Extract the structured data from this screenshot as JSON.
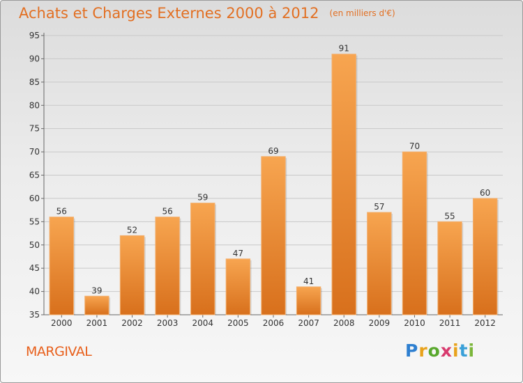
{
  "header": {
    "title": "Achats et Charges Externes 2000 à 2012",
    "subtitle": "(en milliers d'€)"
  },
  "footer": {
    "commune": "MARGIVAL",
    "logo_letters": [
      "P",
      "r",
      "o",
      "x",
      "i",
      "t",
      "i"
    ],
    "logo_colors": [
      "#2e7fd0",
      "#e8a21c",
      "#59a82e",
      "#d83a6e",
      "#e8a21c",
      "#3aa0d8",
      "#7bb63a"
    ]
  },
  "chart_data": {
    "type": "bar",
    "categories": [
      "2000",
      "2001",
      "2002",
      "2003",
      "2004",
      "2005",
      "2006",
      "2007",
      "2008",
      "2009",
      "2010",
      "2011",
      "2012"
    ],
    "values": [
      56,
      39,
      52,
      56,
      59,
      47,
      69,
      41,
      91,
      57,
      70,
      55,
      60
    ],
    "data_labels": [
      "56",
      "39",
      "52",
      "56",
      "59",
      "47",
      "69",
      "41",
      "91",
      "57",
      "70",
      "55",
      "60"
    ],
    "y_ticks": [
      35,
      40,
      45,
      50,
      55,
      60,
      65,
      70,
      75,
      80,
      85,
      90,
      95
    ],
    "ylim": [
      35,
      95
    ],
    "grid": true,
    "bar_color": "#e8862c"
  }
}
